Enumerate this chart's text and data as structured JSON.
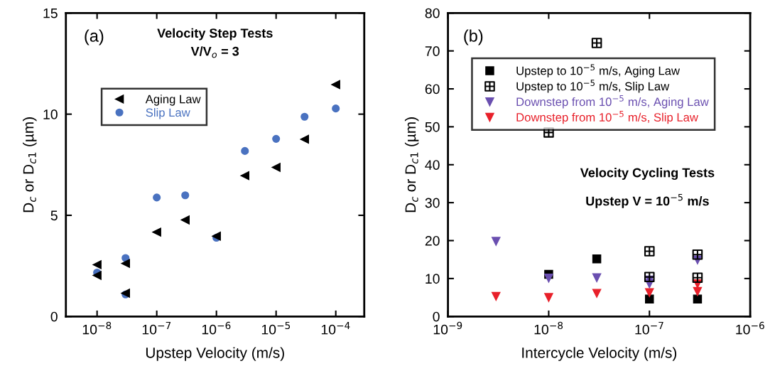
{
  "chart_data": [
    {
      "type": "scatter",
      "xlabel": "Upstep Velocity (m/s)",
      "ylabel": "D$_{c}$ or D$_{c1}$ (µm)",
      "log": "x",
      "xlim": [
        3e-09,
        0.0003
      ],
      "ylim": [
        0,
        15
      ],
      "xticks": [
        {
          "value": 1e-08,
          "label": "10$^{−8}$"
        },
        {
          "value": 1e-07,
          "label": "10$^{−7}$"
        },
        {
          "value": 1e-06,
          "label": "10$^{−6}$"
        },
        {
          "value": 1e-05,
          "label": "10$^{−5}$"
        },
        {
          "value": 0.0001,
          "label": "10$^{−4}$"
        }
      ],
      "yticks": [
        0,
        5,
        10,
        15
      ],
      "grid": false,
      "legend": "top left",
      "annotations": [
        "(a)",
        "Velocity Step Tests",
        "V/V$_{o}$ = 3"
      ],
      "series": [
        {
          "name": "Aging Law",
          "color": "#000000",
          "marker": "triangle",
          "x": [
            1e-08,
            1e-08,
            3e-08,
            3e-08,
            1e-07,
            3e-07,
            1e-06,
            3e-06,
            1e-05,
            3e-05,
            0.0001
          ],
          "values": [
            2.56,
            2.03,
            2.62,
            1.15,
            4.17,
            4.77,
            3.97,
            6.96,
            7.37,
            8.76,
            11.46
          ]
        },
        {
          "name": "Slip Law",
          "color": "#4a72c0",
          "marker": "circle",
          "x": [
            1e-08,
            3e-08,
            3e-08,
            1e-07,
            3e-07,
            1e-06,
            3e-06,
            1e-05,
            3e-05,
            0.0001
          ],
          "values": [
            2.17,
            2.89,
            1.09,
            5.88,
            5.99,
            3.89,
            8.18,
            8.78,
            9.87,
            10.28
          ]
        }
      ]
    },
    {
      "type": "scatter",
      "xlabel": "Intercycle Velocity (m/s)",
      "ylabel": "D$_{c}$ or D$_{c1}$ (µm)",
      "log": "x",
      "xlim": [
        1e-09,
        1e-06
      ],
      "ylim": [
        0,
        80
      ],
      "xticks": [
        {
          "value": 1e-09,
          "label": "10$^{−9}$"
        },
        {
          "value": 1e-08,
          "label": "10$^{−8}$"
        },
        {
          "value": 1e-07,
          "label": "10$^{−7}$"
        },
        {
          "value": 1e-06,
          "label": "10$^{−6}$"
        }
      ],
      "yticks": [
        0,
        10,
        20,
        30,
        40,
        50,
        60,
        70,
        80
      ],
      "grid": false,
      "legend": "top",
      "annotations": [
        "(b)",
        "Velocity Cycling Tests",
        "Upstep V = 10$^{−5}$ m/s"
      ],
      "series": [
        {
          "name": "Upstep to 10$^{−5}$ m/s, Aging Law",
          "color": "#000000",
          "marker": "square",
          "x": [
            1e-08,
            3e-08,
            1e-07,
            3e-07
          ],
          "values": [
            11.1,
            15.2,
            4.6,
            4.6
          ]
        },
        {
          "name": "Upstep to 10$^{−5}$ m/s, Slip Law",
          "color": "#000000",
          "marker": "cross",
          "x": [
            1e-08,
            3e-08,
            1e-07,
            1e-07,
            3e-07,
            3e-07
          ],
          "values": [
            48.5,
            72.1,
            17.2,
            10.4,
            16.3,
            10.2
          ]
        },
        {
          "name": "Downstep from 10$^{−5}$ m/s, Aging Law",
          "color": "#6a4fb0",
          "marker": "triangle",
          "x": [
            3e-09,
            1e-08,
            3e-08,
            1e-07,
            1e-07,
            3e-07
          ],
          "values": [
            19.8,
            10.1,
            10.2,
            9.6,
            8.6,
            14.9
          ]
        },
        {
          "name": "Downstep from 10$^{−5}$ m/s, Slip Law",
          "color": "#e8202a",
          "marker": "triangle",
          "x": [
            3e-09,
            1e-08,
            3e-08,
            1e-07,
            3e-07,
            3e-07
          ],
          "values": [
            5.3,
            5.0,
            6.1,
            6.3,
            8.6,
            6.6
          ]
        }
      ]
    }
  ]
}
